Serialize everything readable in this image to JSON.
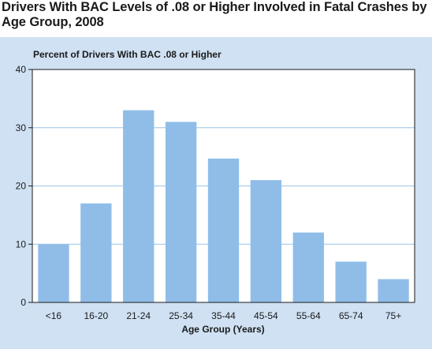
{
  "title": "Drivers With BAC Levels of .08 or Higher Involved in Fatal Crashes by Age Group, 2008",
  "chart_data": {
    "type": "bar",
    "title": "Drivers With BAC Levels of .08 or Higher Involved in Fatal Crashes by Age Group, 2008",
    "ylabel": "Percent of Drivers With BAC .08 or Higher",
    "xlabel": "Age Group (Years)",
    "categories": [
      "<16",
      "16-20",
      "21-24",
      "25-34",
      "35-44",
      "45-54",
      "55-64",
      "65-74",
      "75+"
    ],
    "values": [
      10,
      17,
      33,
      31,
      24.7,
      21,
      12,
      7,
      4
    ],
    "ylim": [
      0,
      40
    ],
    "yticks": [
      0,
      10,
      20,
      30,
      40
    ],
    "grid": true,
    "bar_color": "#8fbde8",
    "panel_color": "#cfe1f3"
  }
}
